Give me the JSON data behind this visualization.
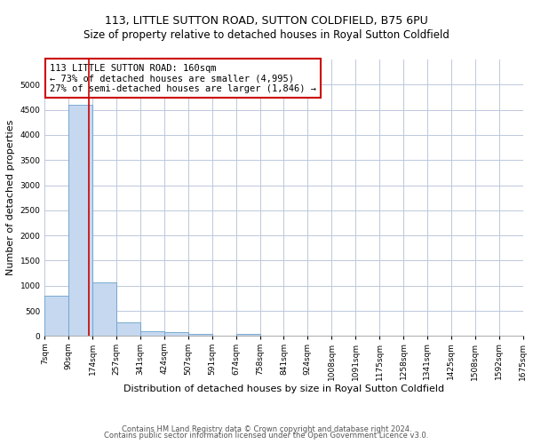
{
  "title": "113, LITTLE SUTTON ROAD, SUTTON COLDFIELD, B75 6PU",
  "subtitle": "Size of property relative to detached houses in Royal Sutton Coldfield",
  "xlabel": "Distribution of detached houses by size in Royal Sutton Coldfield",
  "ylabel": "Number of detached properties",
  "footnote1": "Contains HM Land Registry data © Crown copyright and database right 2024.",
  "footnote2": "Contains public sector information licensed under the Open Government Licence v3.0.",
  "annotation_title": "113 LITTLE SUTTON ROAD: 160sqm",
  "annotation_line1": "← 73% of detached houses are smaller (4,995)",
  "annotation_line2": "27% of semi-detached houses are larger (1,846) →",
  "property_size": 160,
  "bin_edges": [
    7,
    90,
    174,
    257,
    341,
    424,
    507,
    591,
    674,
    758,
    841,
    924,
    1008,
    1091,
    1175,
    1258,
    1341,
    1425,
    1508,
    1592,
    1675
  ],
  "bar_values": [
    800,
    4600,
    1060,
    270,
    90,
    75,
    50,
    0,
    50,
    0,
    0,
    0,
    0,
    0,
    0,
    0,
    0,
    0,
    0,
    0
  ],
  "bar_color": "#c5d8ef",
  "bar_edge_color": "#6aa0cc",
  "highlight_line_color": "#cc0000",
  "ylim": [
    0,
    5500
  ],
  "yticks": [
    0,
    500,
    1000,
    1500,
    2000,
    2500,
    3000,
    3500,
    4000,
    4500,
    5000
  ],
  "bg_color": "#ffffff",
  "grid_color": "#bcc8dc",
  "annotation_box_color": "#ffffff",
  "annotation_box_edge": "#cc0000",
  "title_fontsize": 9,
  "subtitle_fontsize": 8.5,
  "xlabel_fontsize": 8,
  "ylabel_fontsize": 8,
  "tick_fontsize": 6.5,
  "annotation_fontsize": 7.5,
  "footnote_fontsize": 6
}
